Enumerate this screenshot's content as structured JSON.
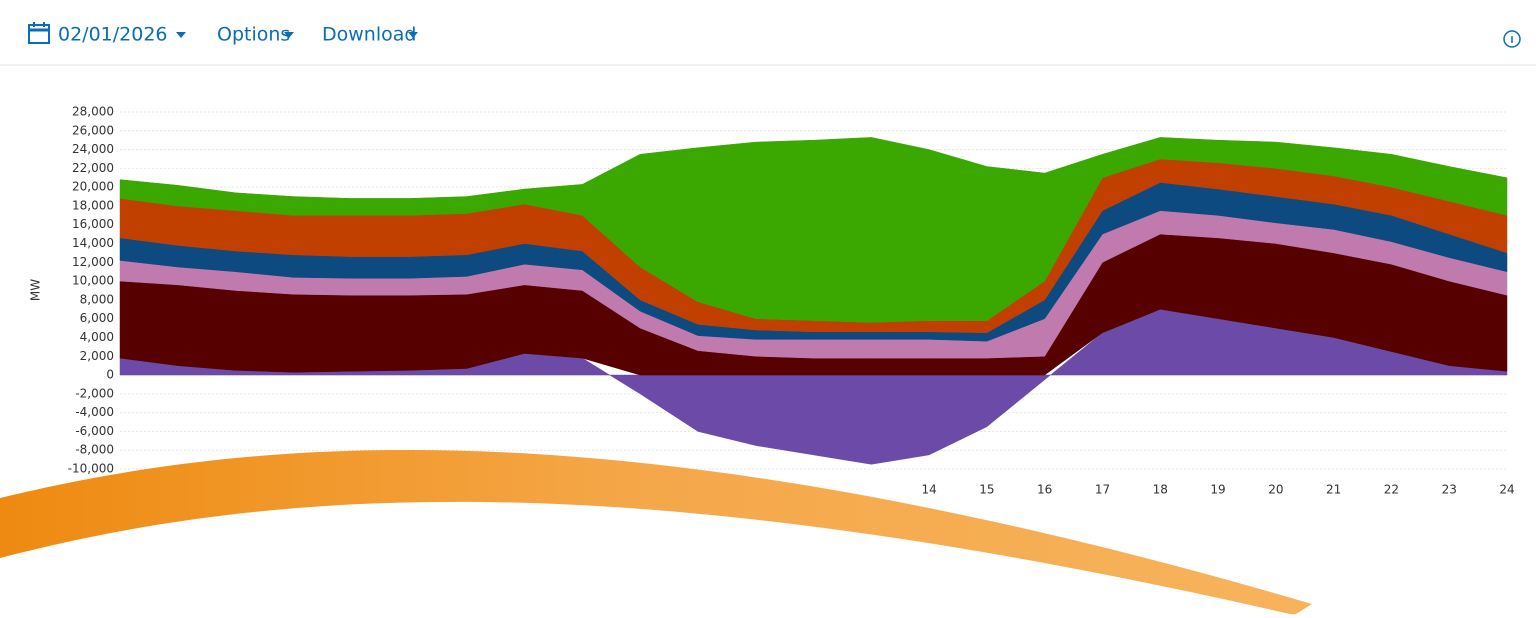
{
  "header": {
    "date": "02/01/2026",
    "options": "Options",
    "download": "Download"
  },
  "chart_data": {
    "type": "stacked-area",
    "ylabel": "MW",
    "x": [
      0,
      1,
      2,
      3,
      4,
      5,
      6,
      7,
      8,
      9,
      10,
      11,
      12,
      13,
      14,
      15,
      16,
      17,
      18,
      19,
      20,
      21,
      22,
      23,
      24
    ],
    "xlim": [
      0,
      24
    ],
    "xticks": [
      14,
      15,
      16,
      17,
      18,
      19,
      20,
      21,
      22,
      23,
      24
    ],
    "ylim": [
      -10000,
      28000
    ],
    "yticks": [
      {
        "value": -10000,
        "label": "-10,000"
      },
      {
        "value": -8000,
        "label": "-8,000"
      },
      {
        "value": -6000,
        "label": "-6,000"
      },
      {
        "value": -4000,
        "label": "-4,000"
      },
      {
        "value": -2000,
        "label": "-2,000"
      },
      0,
      {
        "value": 2000,
        "label": "2,000"
      },
      {
        "value": 4000,
        "label": "4,000"
      },
      {
        "value": 6000,
        "label": "6,000"
      },
      {
        "value": 8000,
        "label": "8,000"
      },
      {
        "value": 10000,
        "label": "10,000"
      },
      {
        "value": 12000,
        "label": "12,000"
      },
      {
        "value": 14000,
        "label": "14,000"
      },
      {
        "value": 16000,
        "label": "16,000"
      },
      {
        "value": 18000,
        "label": "18,000"
      },
      {
        "value": 20000,
        "label": "20,000"
      },
      {
        "value": 22000,
        "label": "22,000"
      },
      {
        "value": 24000,
        "label": "24,000"
      },
      {
        "value": 26000,
        "label": "26,000"
      },
      {
        "value": 28000,
        "label": "28,000"
      }
    ],
    "grid": true,
    "series": [
      {
        "color": "#6b4aa8",
        "values": [
          1800,
          1000,
          500,
          300,
          400,
          500,
          700,
          2300,
          1800,
          -2000,
          -6000,
          -7500,
          -8500,
          -9500,
          -8500,
          -5500,
          -500,
          4500,
          7000,
          6000,
          5000,
          4000,
          2500,
          1000,
          400
        ]
      },
      {
        "color": "#560000",
        "values": [
          8200,
          8600,
          8500,
          8300,
          8100,
          8000,
          7900,
          7300,
          7200,
          5000,
          2600,
          2000,
          1800,
          1800,
          1800,
          1800,
          2000,
          7500,
          8000,
          8600,
          9000,
          9000,
          9300,
          9000,
          8100
        ]
      },
      {
        "color": "#c07aae",
        "values": [
          2200,
          1900,
          2000,
          1800,
          1800,
          1800,
          1900,
          2200,
          2200,
          1800,
          1600,
          1800,
          2000,
          2000,
          2000,
          1800,
          4000,
          3000,
          2500,
          2400,
          2200,
          2500,
          2400,
          2500,
          2500
        ]
      },
      {
        "color": "#0d4a7f",
        "values": [
          2400,
          2300,
          2200,
          2400,
          2300,
          2300,
          2300,
          2200,
          2000,
          1200,
          1200,
          1000,
          800,
          800,
          800,
          900,
          2000,
          2500,
          3000,
          2800,
          2800,
          2700,
          2800,
          2500,
          2000
        ]
      },
      {
        "color": "#c14000",
        "values": [
          4200,
          4200,
          4300,
          4200,
          4400,
          4400,
          4400,
          4200,
          3800,
          3500,
          2400,
          1200,
          1200,
          1000,
          1200,
          1300,
          2000,
          3500,
          2500,
          2800,
          3000,
          3000,
          3000,
          3500,
          4000
        ]
      },
      {
        "color": "#3aa800",
        "values": [
          2000,
          2200,
          1900,
          2000,
          1800,
          1800,
          1800,
          1600,
          3300,
          12000,
          16400,
          18800,
          19200,
          19700,
          18200,
          16400,
          11500,
          2500,
          2300,
          2400,
          2800,
          3000,
          3500,
          3700,
          4000
        ]
      }
    ]
  }
}
